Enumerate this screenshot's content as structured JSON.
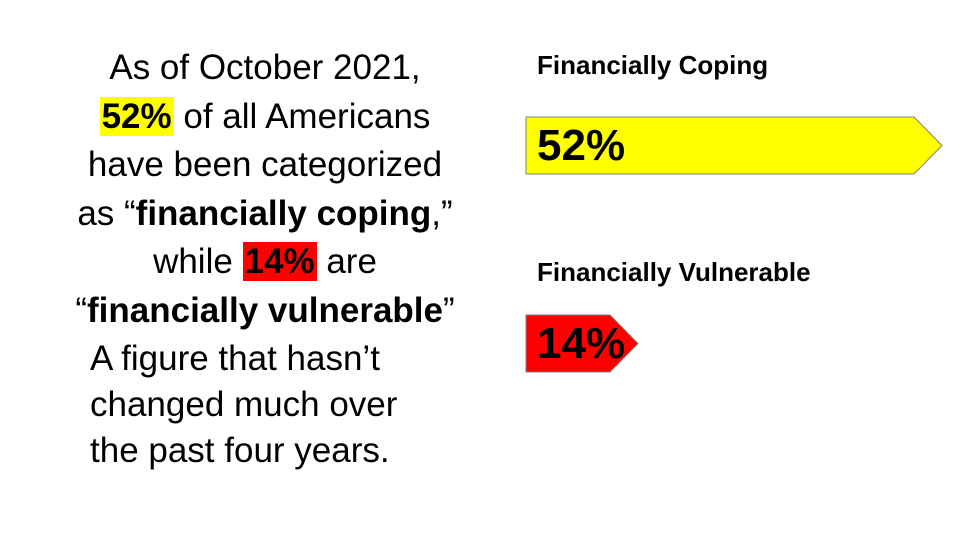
{
  "text": {
    "line1": "As of October 2021,",
    "pct_coping": "52%",
    "line2_rest": " of all Americans",
    "line3": "have been categorized",
    "line4_pre": "as “",
    "line4_bold": "financially coping",
    "line4_post": ",”",
    "line5_pre": "while ",
    "pct_vulnerable": "14%",
    "line5_post": " are",
    "line6_pre": "“",
    "line6_bold": "financially vulnerable",
    "line6_post": "”",
    "sub_line1": "A figure that hasn’t",
    "sub_line2": "changed much over",
    "sub_line3": "the past four years."
  },
  "colors": {
    "yellow": "#ffff00",
    "red": "#ff0000",
    "outline": "#7f7f7f"
  },
  "chart_data": {
    "type": "bar",
    "orientation": "horizontal",
    "unit": "%",
    "bars": [
      {
        "label": "Financially Coping",
        "value": 52,
        "value_label": "52%",
        "color": "#ffff00"
      },
      {
        "label": "Financially Vulnerable",
        "value": 14,
        "value_label": "14%",
        "color": "#ff0000"
      }
    ]
  }
}
